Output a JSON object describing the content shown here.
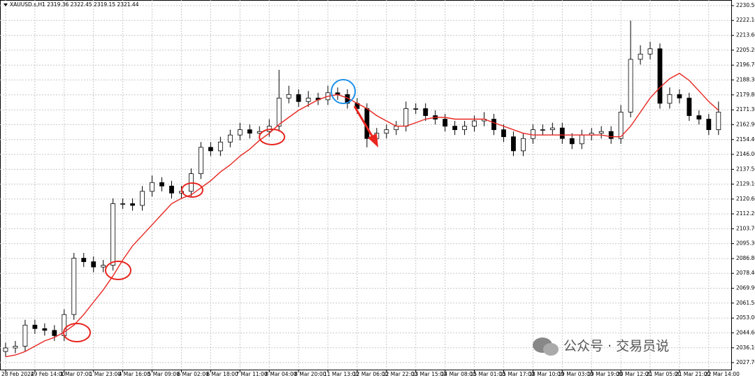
{
  "chart_data": {
    "type": "candlestick",
    "title": "XAUUSD.s,H1  2319.36 2322.45 2319.15 2321.44",
    "watermark": "公众号 · 交易员说",
    "categories": [
      "28 Feb 2024",
      null,
      null,
      "29 Feb 14:00",
      null,
      null,
      "1 Mar 07:00",
      null,
      null,
      "1 Mar 23:00",
      null,
      null,
      "4 Mar 16:00",
      null,
      null,
      "5 Mar 09:00",
      null,
      null,
      "6 Mar 02:00",
      null,
      null,
      "6 Mar 18:00",
      null,
      null,
      "7 Mar 11:00",
      null,
      null,
      "8 Mar 04:00",
      null,
      null,
      "8 Mar 20:00",
      null,
      null,
      "11 Mar 13:00",
      null,
      null,
      "12 Mar 06:00",
      null,
      null,
      "12 Mar 22:00",
      null,
      null,
      "13 Mar 15:00",
      null,
      null,
      "14 Mar 08:00",
      null,
      null,
      "15 Mar 01:00",
      null,
      null,
      "15 Mar 17:00",
      null,
      null,
      "18 Mar 10:00",
      null,
      null,
      "19 Mar 03:00",
      null,
      null,
      "19 Mar 19:00",
      null,
      null,
      "20 Mar 12:00",
      null,
      null,
      "21 Mar 05:00",
      null,
      null,
      "21 Mar 21:00",
      null,
      null,
      "22 Mar 14:00",
      null
    ],
    "open": [
      2034,
      2036,
      2037,
      2049,
      2047,
      2046,
      2043,
      2055,
      2087,
      2085,
      2082,
      2083,
      2118,
      2118,
      2117,
      2125,
      2130,
      2128,
      2124,
      2125,
      2135,
      2150,
      2148,
      2153,
      2157,
      2160,
      2158,
      2159,
      2162,
      2178,
      2180,
      2176,
      2178,
      2177,
      2181,
      2180,
      2175,
      2172,
      2155,
      2158,
      2160,
      2162,
      2172,
      2172,
      2168,
      2166,
      2162,
      2160,
      2162,
      2165,
      2166,
      2160,
      2156,
      2148,
      2155,
      2160,
      2160,
      2161,
      2155,
      2152,
      2157,
      2158,
      2159,
      2155,
      2170,
      2200,
      2203,
      2206,
      2175,
      2180,
      2178,
      2168,
      2166,
      2160
    ],
    "high": [
      2039,
      2040,
      2052,
      2052,
      2050,
      2049,
      2058,
      2090,
      2090,
      2088,
      2086,
      2121,
      2121,
      2121,
      2128,
      2134,
      2133,
      2131,
      2128,
      2138,
      2153,
      2153,
      2156,
      2160,
      2164,
      2163,
      2162,
      2166,
      2194,
      2185,
      2183,
      2182,
      2181,
      2185,
      2184,
      2183,
      2178,
      2175,
      2161,
      2163,
      2165,
      2176,
      2175,
      2175,
      2171,
      2169,
      2165,
      2165,
      2168,
      2170,
      2169,
      2163,
      2159,
      2158,
      2163,
      2163,
      2164,
      2164,
      2158,
      2160,
      2161,
      2162,
      2162,
      2174,
      2222,
      2208,
      2210,
      2209,
      2184,
      2183,
      2181,
      2171,
      2169,
      2176
    ],
    "low": [
      2031,
      2033,
      2034,
      2044,
      2043,
      2040,
      2040,
      2052,
      2082,
      2079,
      2079,
      2080,
      2115,
      2114,
      2114,
      2122,
      2125,
      2121,
      2121,
      2122,
      2132,
      2145,
      2145,
      2150,
      2154,
      2155,
      2155,
      2156,
      2159,
      2175,
      2173,
      2173,
      2174,
      2174,
      2177,
      2172,
      2169,
      2150,
      2152,
      2155,
      2157,
      2159,
      2169,
      2165,
      2163,
      2159,
      2157,
      2157,
      2159,
      2162,
      2157,
      2153,
      2145,
      2145,
      2152,
      2157,
      2157,
      2152,
      2149,
      2149,
      2154,
      2155,
      2152,
      2152,
      2167,
      2197,
      2200,
      2172,
      2172,
      2175,
      2165,
      2163,
      2157,
      2157
    ],
    "close": [
      2036,
      2037,
      2049,
      2047,
      2046,
      2043,
      2055,
      2087,
      2085,
      2082,
      2083,
      2118,
      2118,
      2117,
      2125,
      2130,
      2128,
      2124,
      2125,
      2135,
      2150,
      2148,
      2153,
      2157,
      2160,
      2158,
      2159,
      2162,
      2178,
      2180,
      2176,
      2178,
      2177,
      2181,
      2180,
      2175,
      2172,
      2155,
      2158,
      2160,
      2162,
      2172,
      2172,
      2168,
      2166,
      2162,
      2160,
      2162,
      2165,
      2166,
      2160,
      2156,
      2148,
      2155,
      2160,
      2160,
      2161,
      2155,
      2152,
      2157,
      2158,
      2159,
      2155,
      2170,
      2200,
      2203,
      2206,
      2175,
      2180,
      2178,
      2168,
      2166,
      2160,
      2170
    ],
    "moving_average": {
      "color": "#e8251f",
      "values": [
        2031,
        2032,
        2034,
        2037,
        2040,
        2042,
        2045,
        2049,
        2055,
        2062,
        2069,
        2077,
        2086,
        2094,
        2100,
        2106,
        2112,
        2118,
        2121,
        2123,
        2127,
        2131,
        2136,
        2140,
        2145,
        2149,
        2154,
        2158,
        2163,
        2167,
        2171,
        2174,
        2177,
        2179,
        2180,
        2178,
        2175,
        2172,
        2168,
        2165,
        2162,
        2162,
        2164,
        2166,
        2167,
        2167,
        2166,
        2166,
        2166,
        2166,
        2164,
        2162,
        2160,
        2158,
        2157,
        2157,
        2157,
        2157,
        2157,
        2157,
        2157,
        2157,
        2156,
        2156,
        2162,
        2170,
        2178,
        2184,
        2189,
        2192,
        2188,
        2182,
        2176,
        2171
      ]
    },
    "ylim": [
      2023.7,
      2233.7
    ],
    "yticks": [
      {
        "value": 2230.5,
        "label": "2230.50"
      },
      {
        "value": 2222.1,
        "label": "2222.10"
      },
      {
        "value": 2213.6,
        "label": "2213.60"
      },
      {
        "value": 2205.2,
        "label": "2205.20"
      },
      {
        "value": 2196.7,
        "label": "2196.70"
      },
      {
        "value": 2188.3,
        "label": "2188.30"
      },
      {
        "value": 2179.8,
        "label": "2179.80"
      },
      {
        "value": 2171.3,
        "label": "2171.30"
      },
      {
        "value": 2162.9,
        "label": "2162.90"
      },
      {
        "value": 2154.4,
        "label": "2154.40"
      },
      {
        "value": 2146,
        "label": "2146.00"
      },
      {
        "value": 2137.5,
        "label": "2137.50"
      },
      {
        "value": 2129.1,
        "label": "2129.10"
      },
      {
        "value": 2120.6,
        "label": "2120.60"
      },
      {
        "value": 2112.2,
        "label": "2112.20"
      },
      {
        "value": 2103.7,
        "label": "2103.70"
      },
      {
        "value": 2095.3,
        "label": "2095.30"
      },
      {
        "value": 2086.8,
        "label": "2086.80"
      },
      {
        "value": 2078.4,
        "label": "2078.40"
      },
      {
        "value": 2069.9,
        "label": "2069.90"
      },
      {
        "value": 2061.5,
        "label": "2061.50"
      },
      {
        "value": 2053,
        "label": "2053.00"
      },
      {
        "value": 2044.6,
        "label": "2044.60"
      },
      {
        "value": 2036.1,
        "label": "2036.10"
      },
      {
        "value": 2027.7,
        "label": "2027.70"
      }
    ],
    "grid": true,
    "up_color": "#ffffff",
    "down_color": "#000000",
    "candle_outline": "#000000"
  }
}
